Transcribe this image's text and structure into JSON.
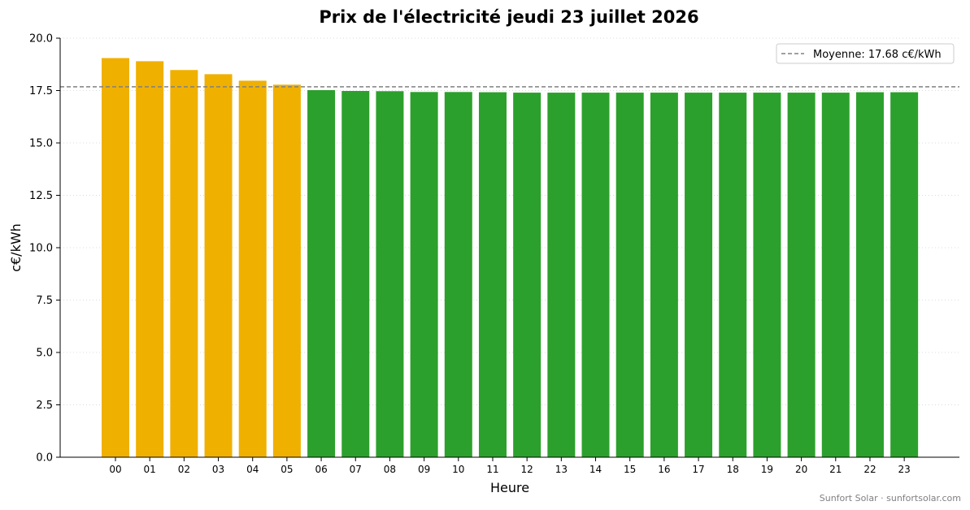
{
  "chart_data": {
    "type": "bar",
    "title": "Prix de l'électricité jeudi 23 juillet 2026",
    "xlabel": "Heure",
    "ylabel": "c€/kWh",
    "ylim": [
      0,
      20
    ],
    "yticks": [
      "0.0",
      "2.5",
      "5.0",
      "7.5",
      "10.0",
      "12.5",
      "15.0",
      "17.5",
      "20.0"
    ],
    "ytick_values": [
      0,
      2.5,
      5,
      7.5,
      10,
      12.5,
      15,
      17.5,
      20
    ],
    "grid": "horizontal dotted",
    "categories": [
      "00",
      "01",
      "02",
      "03",
      "04",
      "05",
      "06",
      "07",
      "08",
      "09",
      "10",
      "11",
      "12",
      "13",
      "14",
      "15",
      "16",
      "17",
      "18",
      "19",
      "20",
      "21",
      "22",
      "23"
    ],
    "values": [
      19.05,
      18.9,
      18.48,
      18.28,
      17.97,
      17.78,
      17.52,
      17.48,
      17.47,
      17.43,
      17.43,
      17.42,
      17.4,
      17.4,
      17.4,
      17.4,
      17.4,
      17.4,
      17.4,
      17.4,
      17.4,
      17.4,
      17.42,
      17.42
    ],
    "bar_colors": [
      "#f0b000",
      "#f0b000",
      "#f0b000",
      "#f0b000",
      "#f0b000",
      "#f0b000",
      "#2ca02c",
      "#2ca02c",
      "#2ca02c",
      "#2ca02c",
      "#2ca02c",
      "#2ca02c",
      "#2ca02c",
      "#2ca02c",
      "#2ca02c",
      "#2ca02c",
      "#2ca02c",
      "#2ca02c",
      "#2ca02c",
      "#2ca02c",
      "#2ca02c",
      "#2ca02c",
      "#2ca02c",
      "#2ca02c"
    ],
    "average": {
      "value": 17.68,
      "label": "Moyenne: 17.68 c€/kWh",
      "color": "#808080",
      "style": "dashed"
    },
    "legend_position": "top-right"
  },
  "footer": {
    "credit": "Sunfort Solar · sunfortsolar.com"
  }
}
